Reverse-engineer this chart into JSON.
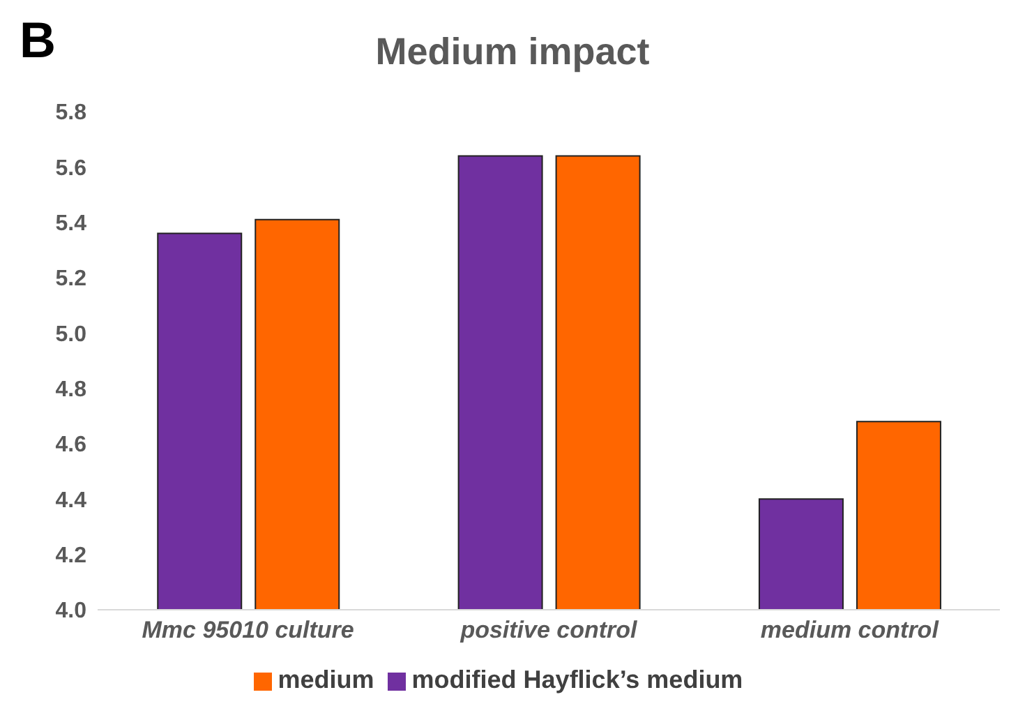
{
  "chart_data": {
    "type": "bar",
    "title": "Medium impact",
    "annotations": [
      "B"
    ],
    "categories": [
      "Mmc 95010 culture",
      "positive control",
      "medium control"
    ],
    "series": [
      {
        "name": "modified Hayflick’s medium",
        "color": "#7030a0",
        "values": [
          5.36,
          5.64,
          4.4
        ]
      },
      {
        "name": "medium",
        "color": "#ff6600",
        "values": [
          5.41,
          5.64,
          4.68
        ]
      }
    ],
    "ylim": [
      4.0,
      5.8
    ],
    "yticks": [
      {
        "value": 4.0,
        "label": "4.0"
      },
      {
        "value": 4.2,
        "label": "4.2"
      },
      {
        "value": 4.4,
        "label": "4.4"
      },
      {
        "value": 4.6,
        "label": "4.6"
      },
      {
        "value": 4.8,
        "label": "4.8"
      },
      {
        "value": 5.0,
        "label": "5.0"
      },
      {
        "value": 5.2,
        "label": "5.2"
      },
      {
        "value": 5.4,
        "label": "5.4"
      },
      {
        "value": 5.6,
        "label": "5.6"
      },
      {
        "value": 5.8,
        "label": "5.8"
      }
    ],
    "grid": false,
    "legend": "bottom"
  }
}
